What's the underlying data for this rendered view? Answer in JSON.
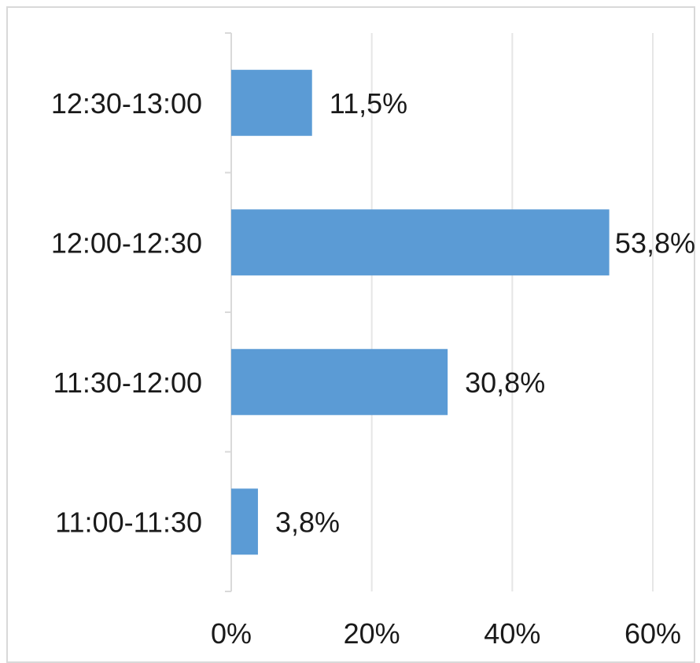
{
  "chart_data": {
    "type": "bar",
    "orientation": "horizontal",
    "title": "",
    "xlabel": "",
    "ylabel": "",
    "categories": [
      "11:00-11:30",
      "11:30-12:00",
      "12:00-12:30",
      "12:30-13:00"
    ],
    "values": [
      3.8,
      30.8,
      53.8,
      11.5
    ],
    "data_labels": [
      "3,8%",
      "30,8%",
      "53,8%",
      "11,5%"
    ],
    "xlim": [
      0,
      60
    ],
    "xticks": [
      0,
      20,
      40,
      60
    ],
    "xtick_labels": [
      "0%",
      "20%",
      "40%",
      "60%"
    ],
    "grid": true,
    "legend": "none",
    "bar_color": "#5b9bd5",
    "grid_color": "#e6e6e6",
    "axis_color": "#d9d9d9"
  }
}
